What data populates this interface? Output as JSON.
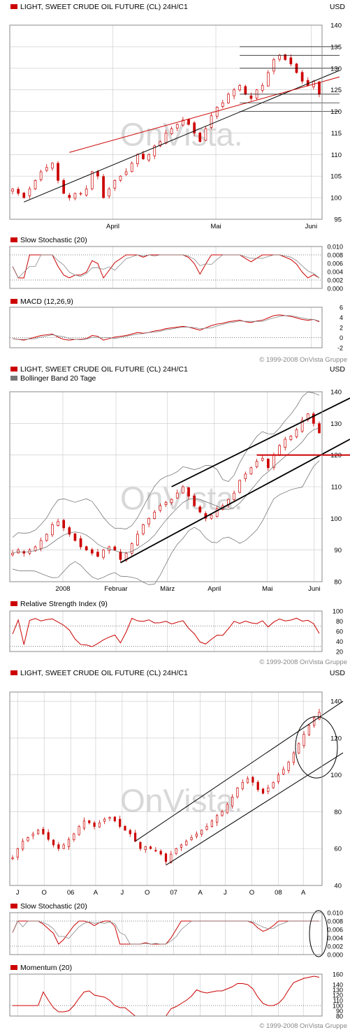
{
  "colors": {
    "accent": "#cc0000",
    "grid": "#c8c8c8",
    "frame": "#888888",
    "text": "#000000",
    "watermark": "#d8d8d8",
    "legend_grey": "#777777"
  },
  "watermark": "OnVista.",
  "chart_data": [
    {
      "id": "panel1-daily",
      "type": "candlestick",
      "title": "LIGHT, SWEET CRUDE OIL FUTURE (CL) 24H/C1",
      "currency": "USD",
      "ylim": [
        95,
        140
      ],
      "y_ticks": [
        "95",
        "100",
        "105",
        "110",
        "115",
        "120",
        "125",
        "130",
        "135",
        "140"
      ],
      "x_ticks": [
        "April",
        "Mai",
        "Juni"
      ],
      "close_approx": [
        102,
        101,
        100,
        102,
        104,
        106,
        107,
        108,
        104,
        101,
        100,
        101,
        101,
        102,
        106,
        105,
        100,
        102,
        104,
        105,
        106,
        108,
        110,
        109,
        110,
        112,
        113,
        115,
        116,
        117,
        118,
        117,
        115,
        113,
        116,
        119,
        121,
        122,
        124,
        125,
        126,
        124,
        123,
        125,
        126,
        129,
        132,
        133,
        132,
        131,
        129,
        127,
        126,
        127,
        124
      ],
      "indicators": [
        {
          "name": "Slow Stochastic (20)",
          "y_ticks": [
            "0.000",
            "0.002",
            "0.004",
            "0.006",
            "0.008",
            "0.010"
          ]
        },
        {
          "name": "MACD (12,26,9)",
          "y_ticks": [
            "-2",
            "0",
            "2",
            "4",
            "6"
          ]
        }
      ],
      "copyright": "© 1999-2008 OnVista Gruppe"
    },
    {
      "id": "panel2-bollinger",
      "type": "candlestick",
      "title": "LIGHT, SWEET CRUDE OIL FUTURE (CL) 24H/C1",
      "legend": [
        "Bollinger Band 20 Tage"
      ],
      "currency": "USD",
      "ylim": [
        80,
        140
      ],
      "y_ticks": [
        "80",
        "90",
        "100",
        "110",
        "120",
        "130",
        "140"
      ],
      "x_ticks": [
        "2008",
        "Februar",
        "März",
        "April",
        "Mai",
        "Juni"
      ],
      "close_approx": [
        89,
        90,
        89,
        90,
        91,
        93,
        95,
        98,
        99,
        97,
        95,
        93,
        91,
        90,
        89,
        88,
        90,
        91,
        90,
        87,
        89,
        92,
        95,
        98,
        100,
        102,
        104,
        105,
        106,
        108,
        110,
        107,
        104,
        102,
        100,
        101,
        103,
        104,
        106,
        108,
        112,
        114,
        116,
        118,
        119,
        116,
        120,
        123,
        125,
        126,
        128,
        131,
        133,
        130,
        127
      ],
      "indicators": [
        {
          "name": "Relative Strength Index (9)",
          "y_ticks": [
            "20",
            "40",
            "60",
            "80",
            "100"
          ]
        }
      ],
      "copyright": "© 1999-2008 OnVista Gruppe"
    },
    {
      "id": "panel3-long",
      "type": "candlestick",
      "title": "LIGHT, SWEET CRUDE OIL FUTURE (CL) 24H/C1",
      "currency": "USD",
      "ylim": [
        40,
        145
      ],
      "y_ticks": [
        "40",
        "60",
        "80",
        "100",
        "120",
        "140"
      ],
      "x_ticks": [
        "J",
        "O",
        "06",
        "A",
        "J",
        "O",
        "07",
        "A",
        "J",
        "O",
        "08",
        "A"
      ],
      "close_approx": [
        55,
        60,
        64,
        66,
        68,
        70,
        68,
        65,
        62,
        60,
        62,
        65,
        68,
        72,
        75,
        74,
        72,
        74,
        76,
        77,
        75,
        72,
        70,
        68,
        64,
        60,
        61,
        60,
        59,
        57,
        53,
        57,
        60,
        62,
        64,
        66,
        68,
        70,
        72,
        75,
        78,
        80,
        84,
        88,
        93,
        96,
        98,
        96,
        92,
        90,
        93,
        96,
        100,
        103,
        107,
        112,
        117,
        122,
        127,
        131,
        134
      ],
      "indicators": [
        {
          "name": "Slow Stochastic (20)",
          "y_ticks": [
            "0.000",
            "0.002",
            "0.004",
            "0.006",
            "0.008",
            "0.010"
          ]
        },
        {
          "name": "Momentum (20)",
          "y_ticks": [
            "80",
            "90",
            "100",
            "110",
            "120",
            "130",
            "140",
            "160"
          ]
        }
      ],
      "copyright": "© 1999-2008 OnVista Gruppe"
    }
  ]
}
